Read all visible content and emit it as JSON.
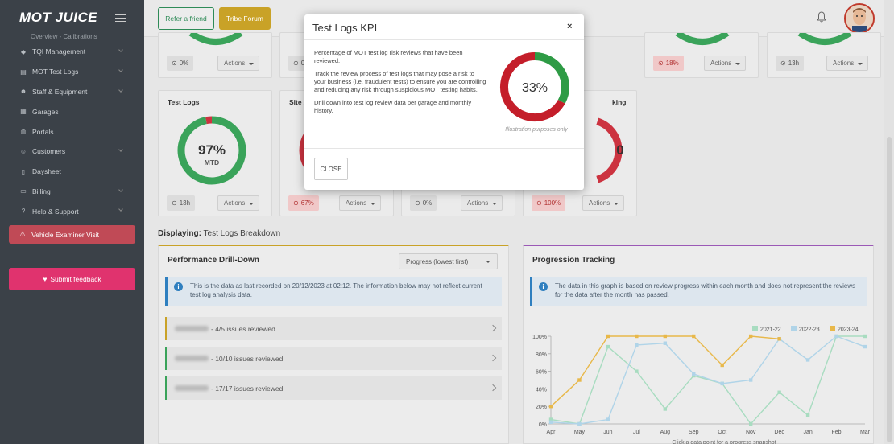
{
  "brand": {
    "logo": "MOT JUICE"
  },
  "sidebar": {
    "sub_item": "Overview - Calibrations",
    "items": [
      {
        "label": "TQI Management",
        "icon": "diamond-icon",
        "chev": true
      },
      {
        "label": "MOT Test Logs",
        "icon": "log-icon",
        "chev": true
      },
      {
        "label": "Staff & Equipment",
        "icon": "people-icon",
        "chev": true
      },
      {
        "label": "Garages",
        "icon": "building-icon",
        "chev": false
      },
      {
        "label": "Portals",
        "icon": "globe-icon",
        "chev": false
      },
      {
        "label": "Customers",
        "icon": "user-icon",
        "chev": true
      },
      {
        "label": "Daysheet",
        "icon": "document-icon",
        "chev": false
      },
      {
        "label": "Billing",
        "icon": "billing-icon",
        "chev": true
      },
      {
        "label": "Help & Support",
        "icon": "help-icon",
        "chev": true
      }
    ],
    "examiner": "Vehicle Examiner Visit",
    "feedback": "Submit feedback"
  },
  "topbar": {
    "refer": "Refer a friend",
    "tribe": "Tribe Forum"
  },
  "top_cards": [
    {
      "pill": "0%",
      "pill_red": false,
      "actions": "Actions"
    },
    {
      "pill": "0%",
      "pill_red": false,
      "actions": "Actions"
    },
    {
      "pill": "",
      "pill_red": false,
      "actions": "Actions"
    },
    {
      "pill": "18%",
      "pill_red": true,
      "actions": "Actions"
    },
    {
      "pill": "13h",
      "pill_red": false,
      "actions": "Actions"
    }
  ],
  "kpi_cards": [
    {
      "title": "Test Logs",
      "value": "97%",
      "sub": "MTD",
      "pill": "13h",
      "pill_red": false,
      "actions": "Actions"
    },
    {
      "title": "Site A",
      "value": "",
      "sub": "",
      "pill": "67%",
      "pill_red": true,
      "actions": "Actions"
    },
    {
      "title": "",
      "value": "",
      "sub": "",
      "pill": "0%",
      "pill_red": false,
      "actions": "Actions"
    },
    {
      "title": "king",
      "value": "0",
      "sub": "",
      "pill": "100%",
      "pill_red": true,
      "actions": "Actions"
    }
  ],
  "displaying": {
    "label": "Displaying:",
    "value": "Test Logs Breakdown"
  },
  "drilldown": {
    "title": "Performance Drill-Down",
    "select": "Progress (lowest first)",
    "info": "This is the data as last recorded on 20/12/2023 at 02:12. The information below may not reflect current test log analysis data.",
    "rows": [
      {
        "text": "- 4/5 issues reviewed",
        "color": "amber"
      },
      {
        "text": "- 10/10 issues reviewed",
        "color": "green"
      },
      {
        "text": "- 17/17 issues reviewed",
        "color": "green"
      }
    ]
  },
  "progression": {
    "title": "Progression Tracking",
    "info": "The data in this graph is based on review progress within each month and does not represent the reviews for the data after the month has passed.",
    "footer": "Click a data point for a progress snapshot"
  },
  "chart_data": {
    "type": "line",
    "categories": [
      "Apr",
      "May",
      "Jun",
      "Jul",
      "Aug",
      "Sep",
      "Oct",
      "Nov",
      "Dec",
      "Jan",
      "Feb",
      "Mar"
    ],
    "ylim": [
      0,
      100
    ],
    "yticks": [
      "0%",
      "20%",
      "40%",
      "60%",
      "80%",
      "100%"
    ],
    "legend_position": "top-right",
    "series": [
      {
        "name": "2021-22",
        "color": "#a8dcc0",
        "values": [
          5,
          0,
          88,
          60,
          17,
          55,
          46,
          0,
          36,
          10,
          100,
          100
        ]
      },
      {
        "name": "2022-23",
        "color": "#b0d4e8",
        "values": [
          2,
          0,
          5,
          90,
          92,
          57,
          46,
          50,
          97,
          73,
          100,
          88
        ]
      },
      {
        "name": "2023-24",
        "color": "#e8b84a",
        "values": [
          20,
          50,
          100,
          100,
          100,
          100,
          67,
          100,
          97,
          null,
          null,
          null
        ]
      }
    ]
  },
  "modal": {
    "title": "Test Logs KPI",
    "close_x": "×",
    "p1": "Percentage of MOT test log risk reviews that have been reviewed.",
    "p2": "Track the review process of test logs that may pose a risk to your business (i.e. fraudulent tests) to ensure you are controlling and reducing any risk through suspicious MOT testing habits.",
    "p3": "Drill down into test log review data per garage and monthly history.",
    "donut_value": "33%",
    "donut_fraction": 0.33,
    "illustration": "Illustration purposes only",
    "close_btn": "CLOSE"
  }
}
